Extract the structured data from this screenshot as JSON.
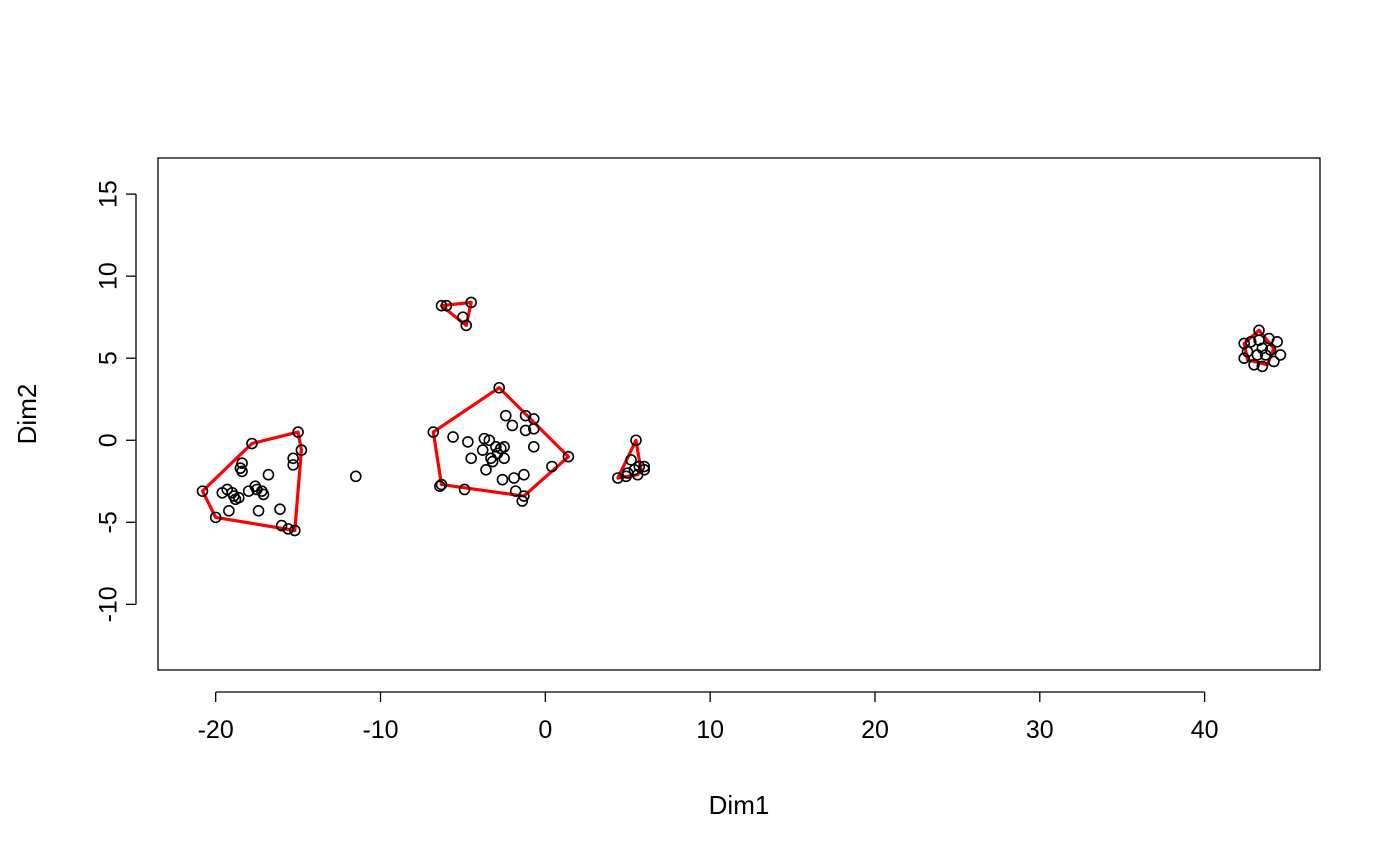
{
  "chart_data": {
    "type": "scatter",
    "title": "",
    "xlabel": "Dim1",
    "ylabel": "Dim2",
    "xlim": [
      -23.5,
      47.0
    ],
    "ylim": [
      -14.0,
      17.2
    ],
    "x_ticks": [
      -20,
      -10,
      0,
      10,
      20,
      30,
      40
    ],
    "y_ticks": [
      -10,
      -5,
      0,
      5,
      10,
      15
    ],
    "x_tick_labels": [
      "-20",
      "-10",
      "0",
      "10",
      "20",
      "30",
      "40"
    ],
    "y_tick_labels": [
      "-10",
      "-5",
      "0",
      "5",
      "10",
      "15"
    ],
    "grid": false,
    "legend": "none",
    "point_color": "#000000",
    "hull_color": "#ff0000",
    "points": [
      [
        -20.8,
        -3.1
      ],
      [
        -20.0,
        -4.7
      ],
      [
        -19.6,
        -3.2
      ],
      [
        -19.3,
        -3.0
      ],
      [
        -19.0,
        -3.2
      ],
      [
        -19.2,
        -4.3
      ],
      [
        -18.9,
        -3.4
      ],
      [
        -18.8,
        -3.6
      ],
      [
        -18.6,
        -3.5
      ],
      [
        -18.4,
        -1.4
      ],
      [
        -18.5,
        -1.7
      ],
      [
        -18.4,
        -1.9
      ],
      [
        -18.0,
        -3.1
      ],
      [
        -17.8,
        -0.2
      ],
      [
        -17.6,
        -2.8
      ],
      [
        -17.5,
        -3.0
      ],
      [
        -17.4,
        -4.3
      ],
      [
        -17.2,
        -3.1
      ],
      [
        -17.1,
        -3.3
      ],
      [
        -16.8,
        -2.1
      ],
      [
        -16.1,
        -4.2
      ],
      [
        -16.0,
        -5.2
      ],
      [
        -15.6,
        -5.4
      ],
      [
        -15.2,
        -5.5
      ],
      [
        -15.3,
        -1.1
      ],
      [
        -15.3,
        -1.5
      ],
      [
        -15.0,
        0.5
      ],
      [
        -14.8,
        -0.6
      ],
      [
        -11.5,
        -2.2
      ],
      [
        -6.3,
        8.2
      ],
      [
        -6.0,
        8.2
      ],
      [
        -5.0,
        7.5
      ],
      [
        -4.8,
        7.0
      ],
      [
        -4.5,
        8.4
      ],
      [
        -6.8,
        0.5
      ],
      [
        -6.4,
        -2.8
      ],
      [
        -6.3,
        -2.7
      ],
      [
        -5.6,
        0.2
      ],
      [
        -4.9,
        -3.0
      ],
      [
        -4.7,
        -0.1
      ],
      [
        -4.5,
        -1.1
      ],
      [
        -3.8,
        -0.6
      ],
      [
        -3.7,
        0.1
      ],
      [
        -3.6,
        -1.8
      ],
      [
        -3.4,
        0.0
      ],
      [
        -3.3,
        -1.1
      ],
      [
        -3.2,
        -1.3
      ],
      [
        -3.0,
        -0.4
      ],
      [
        -2.9,
        -0.8
      ],
      [
        -2.8,
        3.2
      ],
      [
        -2.7,
        -0.5
      ],
      [
        -2.6,
        -2.4
      ],
      [
        -2.5,
        -1.1
      ],
      [
        -2.5,
        -0.4
      ],
      [
        -2.4,
        1.5
      ],
      [
        -2.0,
        0.9
      ],
      [
        -1.9,
        -2.3
      ],
      [
        -1.8,
        -3.1
      ],
      [
        -1.4,
        -3.7
      ],
      [
        -1.3,
        -3.4
      ],
      [
        -1.3,
        -2.1
      ],
      [
        -1.2,
        1.5
      ],
      [
        -1.2,
        0.6
      ],
      [
        -0.7,
        1.3
      ],
      [
        -0.7,
        0.7
      ],
      [
        -0.7,
        -0.4
      ],
      [
        0.4,
        -1.6
      ],
      [
        1.4,
        -1.0
      ],
      [
        4.4,
        -2.3
      ],
      [
        4.9,
        -2.2
      ],
      [
        5.0,
        -2.0
      ],
      [
        5.2,
        -1.2
      ],
      [
        5.4,
        -1.8
      ],
      [
        5.5,
        0.0
      ],
      [
        5.6,
        -2.1
      ],
      [
        5.7,
        -1.6
      ],
      [
        6.0,
        -1.8
      ],
      [
        6.0,
        -1.6
      ],
      [
        42.4,
        5.9
      ],
      [
        42.4,
        5.0
      ],
      [
        42.6,
        5.4
      ],
      [
        42.8,
        6.0
      ],
      [
        43.0,
        4.6
      ],
      [
        43.2,
        5.2
      ],
      [
        43.3,
        6.1
      ],
      [
        43.3,
        6.7
      ],
      [
        43.5,
        4.5
      ],
      [
        43.5,
        5.6
      ],
      [
        43.7,
        5.2
      ],
      [
        43.9,
        6.2
      ],
      [
        44.0,
        5.5
      ],
      [
        44.2,
        4.8
      ],
      [
        44.4,
        6.0
      ],
      [
        44.6,
        5.2
      ]
    ],
    "hulls": [
      [
        [
          -20.8,
          -3.1
        ],
        [
          -17.8,
          -0.2
        ],
        [
          -15.0,
          0.5
        ],
        [
          -14.8,
          -0.6
        ],
        [
          -15.2,
          -5.5
        ],
        [
          -20.0,
          -4.7
        ]
      ],
      [
        [
          -6.3,
          8.2
        ],
        [
          -4.5,
          8.4
        ],
        [
          -4.8,
          7.0
        ]
      ],
      [
        [
          -6.8,
          0.5
        ],
        [
          -2.8,
          3.2
        ],
        [
          1.4,
          -1.0
        ],
        [
          -1.3,
          -3.4
        ],
        [
          -6.3,
          -2.7
        ]
      ],
      [
        [
          4.4,
          -2.3
        ],
        [
          5.5,
          0.0
        ],
        [
          5.8,
          -1.8
        ],
        [
          5.6,
          -2.1
        ]
      ],
      [
        [
          42.4,
          5.9
        ],
        [
          43.3,
          6.7
        ],
        [
          44.2,
          5.6
        ],
        [
          43.8,
          4.6
        ],
        [
          42.6,
          4.9
        ]
      ]
    ]
  }
}
